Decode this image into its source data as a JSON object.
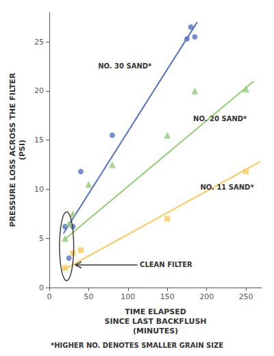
{
  "chart_data": {
    "type": "scatter",
    "xlabel": "TIME ELAPSED\nSINCE LAST BACKFLUSH\n(MINUTES)",
    "ylabel": "PRESSURE LOSS ACROSS THE FILTER\n(PSI)",
    "footnote": "*HIGHER NO. DENOTES SMALLER GRAIN SIZE",
    "xlim": [
      0,
      270
    ],
    "ylim": [
      0,
      28
    ],
    "xticks": [
      0,
      50,
      100,
      150,
      200,
      250
    ],
    "yticks": [
      0,
      5,
      10,
      15,
      20,
      25
    ],
    "grid": false,
    "series": [
      {
        "name": "NO. 30 SAND*",
        "marker": "circle",
        "x": [
          20,
          25,
          30,
          40,
          80,
          175,
          180,
          185
        ],
        "values": [
          6.2,
          3.0,
          6.2,
          11.8,
          15.5,
          25.3,
          26.5,
          25.5
        ],
        "fit": {
          "x": [
            18,
            188
          ],
          "values": [
            5.5,
            27.0
          ]
        },
        "label_at": [
          62,
          22.5
        ]
      },
      {
        "name": "NO. 20 SAND*",
        "marker": "triangle",
        "x": [
          20,
          25,
          30,
          50,
          80,
          150,
          185,
          250
        ],
        "values": [
          5.0,
          6.5,
          7.5,
          10.5,
          12.5,
          15.5,
          20.0,
          20.2
        ],
        "fit": {
          "x": [
            18,
            260
          ],
          "values": [
            4.8,
            21.0
          ]
        },
        "label_at": [
          183,
          17.2
        ]
      },
      {
        "name": "NO. 11 SAND*",
        "marker": "square",
        "x": [
          20,
          30,
          40,
          150,
          250
        ],
        "values": [
          2.0,
          3.5,
          3.8,
          7.0,
          11.8
        ],
        "fit": {
          "x": [
            18,
            268
          ],
          "values": [
            1.8,
            12.8
          ]
        },
        "label_at": [
          192,
          10.2
        ]
      }
    ],
    "ellipse": {
      "cx": 22,
      "cy": 4.2,
      "width": 18,
      "height": 7.0
    },
    "arrow": {
      "from": [
        112,
        2.3
      ],
      "to": [
        33,
        2.3
      ]
    },
    "annotations": [
      {
        "text": "CLEAN FILTER",
        "x": 115,
        "y": 2.3
      }
    ]
  }
}
